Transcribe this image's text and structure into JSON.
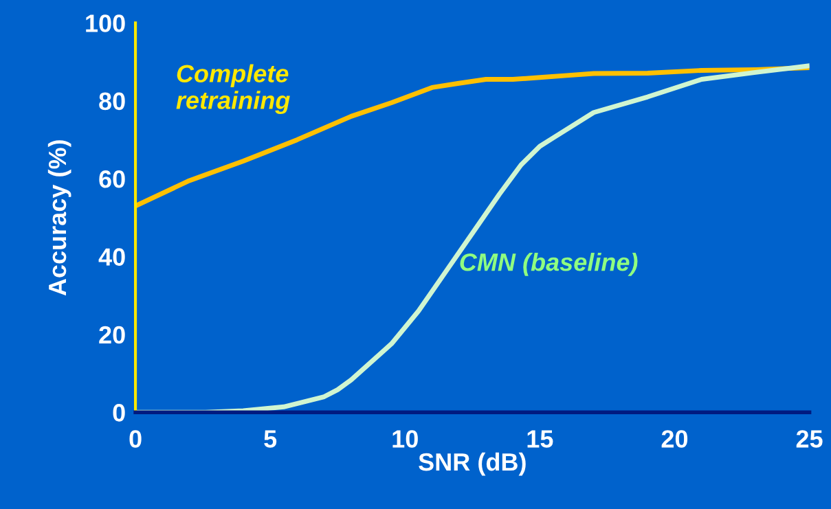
{
  "chart_data": {
    "type": "line",
    "xlabel": "SNR (dB)",
    "ylabel": "Accuracy (%)",
    "xlim": [
      0,
      25
    ],
    "xticks": [
      0,
      5,
      10,
      15,
      20,
      25
    ],
    "ylim": [
      0,
      100
    ],
    "yticks": [
      0,
      20,
      40,
      60,
      80,
      100
    ],
    "grid": false,
    "legend": false,
    "marker": "none",
    "line_style": "solid",
    "series": [
      {
        "name": "Complete retraining",
        "color": "#ffc000",
        "x": [
          0,
          2,
          4,
          6,
          8,
          9.5,
          11,
          12,
          13,
          14,
          15,
          16,
          17,
          19,
          21,
          23,
          25
        ],
        "values": [
          53,
          59.5,
          64.5,
          70,
          76,
          79.5,
          83.4,
          84.5,
          85.5,
          85.5,
          86,
          86.5,
          87,
          87.1,
          87.8,
          88,
          88.5
        ]
      },
      {
        "name": "CMN (baseline)",
        "color": "#d0f5d0",
        "x": [
          0,
          2.6,
          4,
          5.5,
          7,
          7.5,
          8,
          9.5,
          10.5,
          11.5,
          12.5,
          13.5,
          14.3,
          15,
          15.5,
          17,
          19,
          21,
          23,
          25
        ],
        "values": [
          0,
          0,
          0.4,
          1.4,
          4,
          5.8,
          8.3,
          17.6,
          26,
          36,
          46,
          56,
          63.5,
          68.3,
          70.5,
          77,
          81,
          85.5,
          87.3,
          89
        ]
      }
    ]
  }
}
